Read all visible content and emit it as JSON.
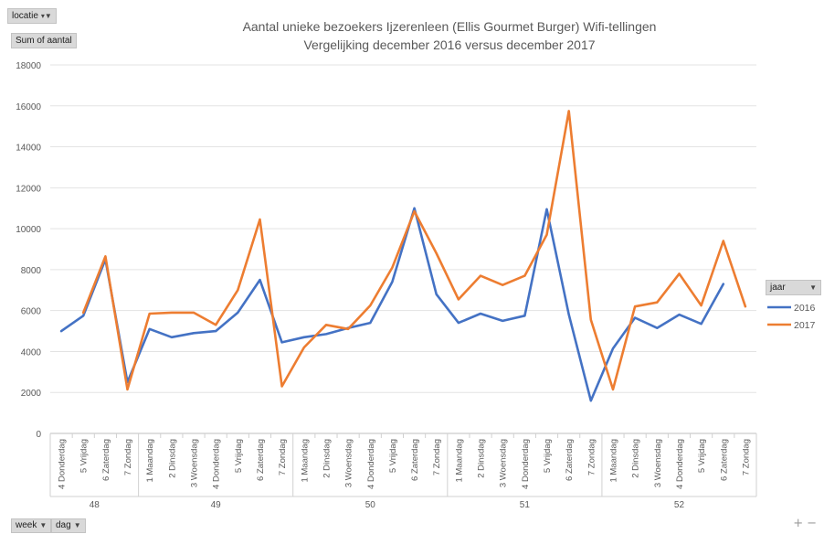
{
  "filter": {
    "locatie_label": "locatie",
    "values_label": "Sum of aantal"
  },
  "row_fields": {
    "week_label": "week",
    "dag_label": "dag"
  },
  "legend_field_label": "jaar",
  "zoom": {
    "plus": "+",
    "minus": "−"
  },
  "chart_data": {
    "type": "line",
    "title": "Aantal unieke bezoekers Ijzerenleen (Ellis Gourmet Burger) Wifi-tellingen",
    "subtitle": "Vergelijking december  2016 versus december  2017",
    "ylim": [
      0,
      18000
    ],
    "yticks": [
      0,
      2000,
      4000,
      6000,
      8000,
      10000,
      12000,
      14000,
      16000,
      18000
    ],
    "legend_position": "right",
    "grid": true,
    "groups": [
      {
        "label": "48",
        "days": [
          "4 Donderdag",
          "5 Vrijdag",
          "6 Zaterdag",
          "7 Zondag"
        ]
      },
      {
        "label": "49",
        "days": [
          "1 Maandag",
          "2 Dinsdag",
          "3 Woensdag",
          "4 Donderdag",
          "5 Vrijdag",
          "6 Zaterdag",
          "7 Zondag"
        ]
      },
      {
        "label": "50",
        "days": [
          "1 Maandag",
          "2 Dinsdag",
          "3 Woensdag",
          "4 Donderdag",
          "5 Vrijdag",
          "6 Zaterdag",
          "7 Zondag"
        ]
      },
      {
        "label": "51",
        "days": [
          "1 Maandag",
          "2 Dinsdag",
          "3 Woensdag",
          "4 Donderdag",
          "5 Vrijdag",
          "6 Zaterdag",
          "7 Zondag"
        ]
      },
      {
        "label": "52",
        "days": [
          "1 Maandag",
          "2 Dinsdag",
          "3 Woensdag",
          "4 Donderdag",
          "5 Vrijdag",
          "6 Zaterdag",
          "7 Zondag"
        ]
      }
    ],
    "series": [
      {
        "name": "2016",
        "color": "#4472c4",
        "values": [
          5000,
          5750,
          8500,
          2500,
          5100,
          4700,
          4900,
          5000,
          5900,
          7500,
          4450,
          4700,
          4850,
          5150,
          5400,
          7400,
          11000,
          6800,
          5400,
          5850,
          5500,
          5750,
          10950,
          5800,
          1600,
          4150,
          5650,
          5150,
          5800,
          5350,
          7300,
          null
        ]
      },
      {
        "name": "2017",
        "color": "#ed7d31",
        "values": [
          null,
          5900,
          8650,
          2150,
          5850,
          5900,
          5900,
          5300,
          7000,
          10450,
          2300,
          4200,
          5300,
          5100,
          6250,
          8100,
          10850,
          8800,
          6550,
          7700,
          7250,
          7700,
          9700,
          15750,
          5550,
          2150,
          6200,
          6400,
          7800,
          6250,
          9400,
          6200
        ]
      }
    ]
  }
}
